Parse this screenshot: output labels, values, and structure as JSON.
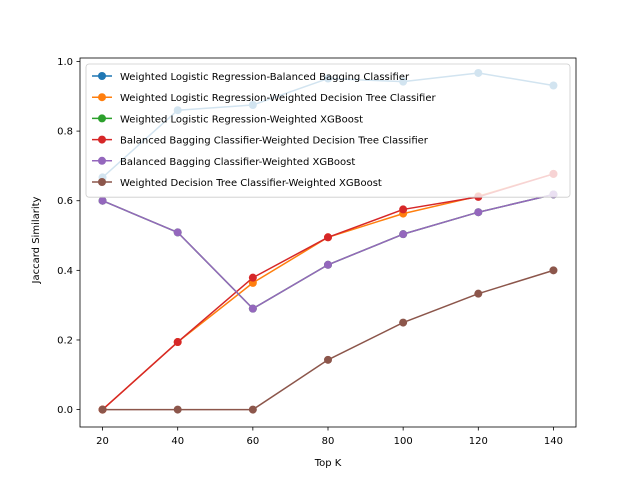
{
  "chart_data": {
    "type": "line",
    "title": "",
    "xlabel": "Top K",
    "ylabel": "Jaccard Similarity",
    "x": [
      20,
      40,
      60,
      80,
      100,
      120,
      140
    ],
    "xticks": [
      20,
      40,
      60,
      80,
      100,
      120,
      140
    ],
    "yticks": [
      0.0,
      0.2,
      0.4,
      0.6,
      0.8,
      1.0
    ],
    "ytick_labels": [
      "0.0",
      "0.2",
      "0.4",
      "0.6",
      "0.8",
      "1.0"
    ],
    "xlim": [
      14,
      146
    ],
    "ylim": [
      -0.05,
      1.01
    ],
    "grid": false,
    "legend_position": "upper-left",
    "series": [
      {
        "name": "Weighted Logistic Regression-Balanced Bagging Classifier",
        "color": "#1f77b4",
        "values": [
          0.667,
          0.86,
          0.875,
          0.951,
          0.942,
          0.967,
          0.931
        ]
      },
      {
        "name": "Weighted Logistic Regression-Weighted Decision Tree Classifier",
        "color": "#ff7f0e",
        "values": [
          0.0,
          0.194,
          0.364,
          0.495,
          0.563,
          0.613,
          0.677
        ]
      },
      {
        "name": "Weighted Logistic Regression-Weighted XGBoost",
        "color": "#2ca02c",
        "values": [
          0.6,
          0.509,
          0.29,
          0.416,
          0.504,
          0.567,
          0.618
        ]
      },
      {
        "name": "Balanced Bagging Classifier-Weighted Decision Tree Classifier",
        "color": "#d62728",
        "values": [
          0.0,
          0.194,
          0.379,
          0.495,
          0.575,
          0.611,
          0.677
        ]
      },
      {
        "name": "Balanced Bagging Classifier-Weighted XGBoost",
        "color": "#9467bd",
        "values": [
          0.6,
          0.509,
          0.29,
          0.416,
          0.504,
          0.567,
          0.618
        ]
      },
      {
        "name": "Weighted Decision Tree Classifier-Weighted XGBoost",
        "color": "#8c564b",
        "values": [
          0.0,
          0.0,
          0.0,
          0.143,
          0.25,
          0.333,
          0.4
        ]
      }
    ]
  }
}
